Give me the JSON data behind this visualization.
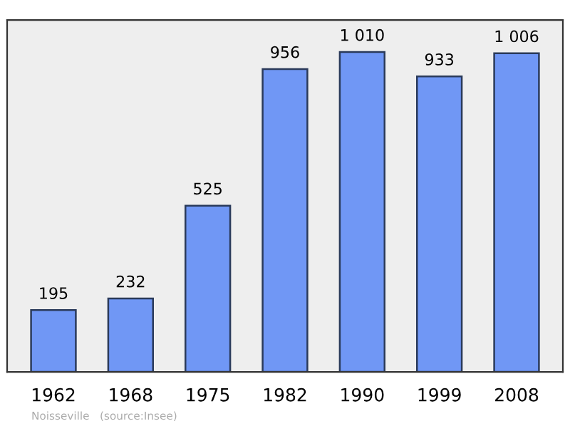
{
  "chart_data": {
    "type": "bar",
    "categories": [
      "1962",
      "1968",
      "1975",
      "1982",
      "1990",
      "1999",
      "2008"
    ],
    "values": [
      195,
      232,
      525,
      956,
      1010,
      933,
      1006
    ],
    "value_labels": [
      "195",
      "232",
      "525",
      "956",
      "1 010",
      "933",
      "1 006"
    ],
    "color": "#7097f5",
    "annotations": [
      "Noisseville",
      "(source:Insee)"
    ],
    "grid": false,
    "legend": false
  }
}
